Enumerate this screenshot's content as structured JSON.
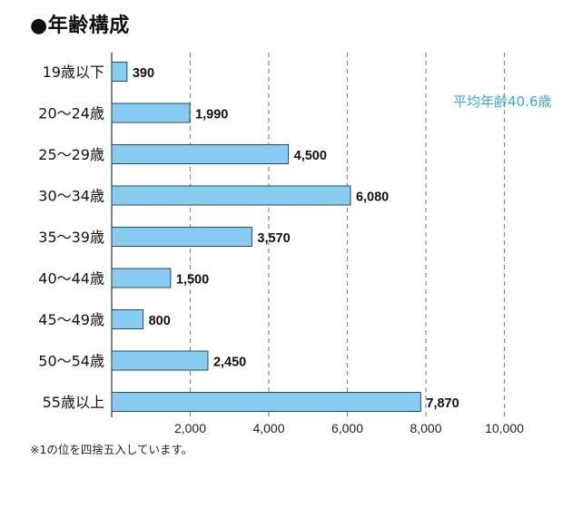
{
  "header": {
    "title": "●年齢構成"
  },
  "annotation": {
    "average_age": "平均年齢40.6歳"
  },
  "footnote": "※1の位を四捨五入しています。",
  "colors": {
    "bar_fill": "#87cdf2",
    "bar_stroke": "#2a4a63",
    "grid": "#8c8c8c",
    "average_label": "#3fa7e3"
  },
  "chart_data": {
    "type": "bar",
    "orientation": "horizontal",
    "title": "年齢構成",
    "categories": [
      "19歳以下",
      "20〜24歳",
      "25〜29歳",
      "30〜34歳",
      "35〜39歳",
      "40〜44歳",
      "45〜49歳",
      "50〜54歳",
      "55歳以上"
    ],
    "values": [
      390,
      1990,
      4500,
      6080,
      3570,
      1500,
      800,
      2450,
      7870
    ],
    "value_labels": [
      "390",
      "1,990",
      "4,500",
      "6,080",
      "3,570",
      "1,500",
      "800",
      "2,450",
      "7,870"
    ],
    "xlim": [
      0,
      11000
    ],
    "x_ticks": [
      2000,
      4000,
      6000,
      8000,
      10000
    ],
    "x_tick_labels": [
      "2,000",
      "4,000",
      "6,000",
      "8,000",
      "10,000"
    ],
    "grid": "vertical dashed"
  }
}
